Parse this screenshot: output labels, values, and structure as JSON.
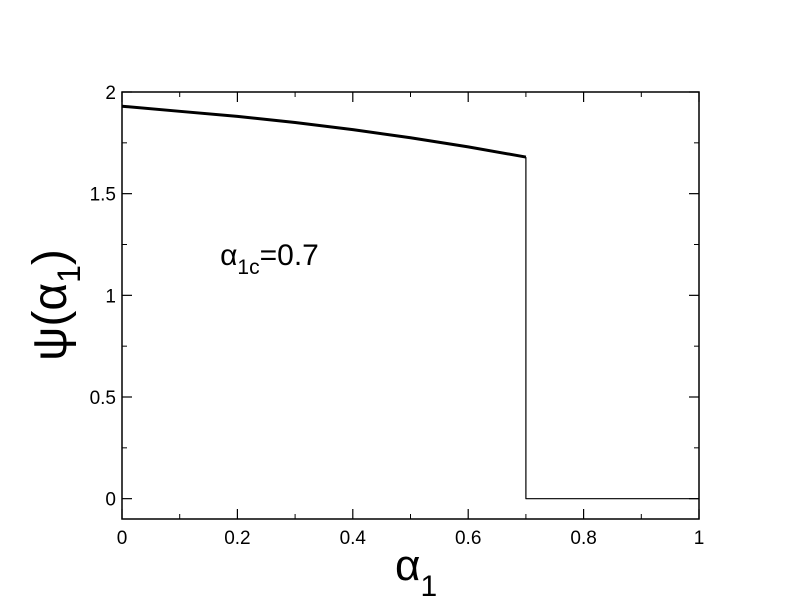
{
  "chart_data": {
    "type": "line",
    "xlabel": {
      "symbol": "α",
      "subscript": "1"
    },
    "ylabel": {
      "prefix": "ψ(α",
      "subscript": "1",
      "suffix": ")"
    },
    "annotation": {
      "symbol": "α",
      "subscript": "1c",
      "suffix": "=0.7",
      "x": 0.17,
      "y": 1.15
    },
    "series": [
      {
        "color": "#000000",
        "width": 3,
        "x": [
          0,
          0.1,
          0.2,
          0.3,
          0.4,
          0.5,
          0.6,
          0.7
        ],
        "values": [
          1.93,
          1.905,
          1.88,
          1.85,
          1.815,
          1.775,
          1.73,
          1.68
        ]
      },
      {
        "color": "#000000",
        "width": 1.2,
        "x": [
          0.7,
          0.7,
          1
        ],
        "values": [
          1.68,
          0,
          0
        ]
      }
    ],
    "xlim": [
      0,
      1
    ],
    "ylim": [
      -0.1,
      2
    ],
    "xticks": [
      0,
      0.2,
      0.4,
      0.6,
      0.8,
      1
    ],
    "yticks": [
      0,
      0.5,
      1,
      1.5,
      2
    ],
    "xminorticks": [
      0.1,
      0.3,
      0.5,
      0.7,
      0.9
    ],
    "yminorticks": [
      0.25,
      0.75,
      1.25,
      1.75
    ]
  }
}
